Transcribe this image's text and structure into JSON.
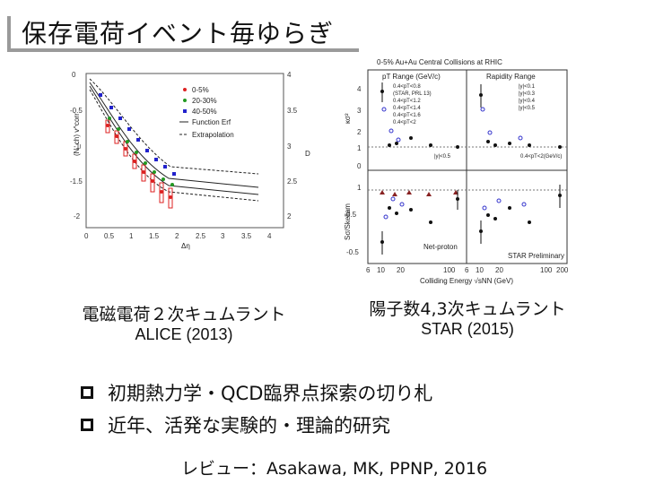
{
  "title": "保存電荷イベント毎ゆらぎ",
  "left_figure": {
    "caption": "電磁電荷２次キュムラント",
    "source": "ALICE (2013)",
    "legend": [
      "0-5%",
      "20-30%",
      "40-50%",
      "Function Erf",
      "Extrapolation"
    ],
    "xlabel": "Δη",
    "ylabel_right": "D"
  },
  "right_figure": {
    "caption": "陽子数4,3次キュムラント",
    "source": "STAR (2015)",
    "header": "0-5% Au+Au Central Collisions at RHIC",
    "xlabel": "Colliding Energy √sNN (GeV)",
    "panel_labels": [
      "Net-proton",
      "STAR Preliminary"
    ],
    "legend_left_title": "pT Range (GeV/c)",
    "legend_right_title": "Rapidity Range",
    "legend_left": [
      "0.4<pT<0.8",
      "(STAR, PRL 13)",
      "0.4<pT<1.2",
      "0.4<pT<1.4",
      "0.4<pT<1.6",
      "0.4<pT<2"
    ],
    "legend_right": [
      "|y|<0.1",
      "|y|<0.3",
      "|y|<0.4",
      "|y|<0.5"
    ],
    "note_left": "|y|<0.5",
    "note_right": "0.4<pT<2(GeV/c)",
    "ylabel_top": "κσ²",
    "ylabel_bottom": "Sσ/Skellam"
  },
  "bullets": [
    "初期熱力学・QCD臨界点探索の切り札",
    "近年、活発な実験的・理論的研究"
  ],
  "review": "レビュー：Asakawa, MK, PPNP, 2016"
}
